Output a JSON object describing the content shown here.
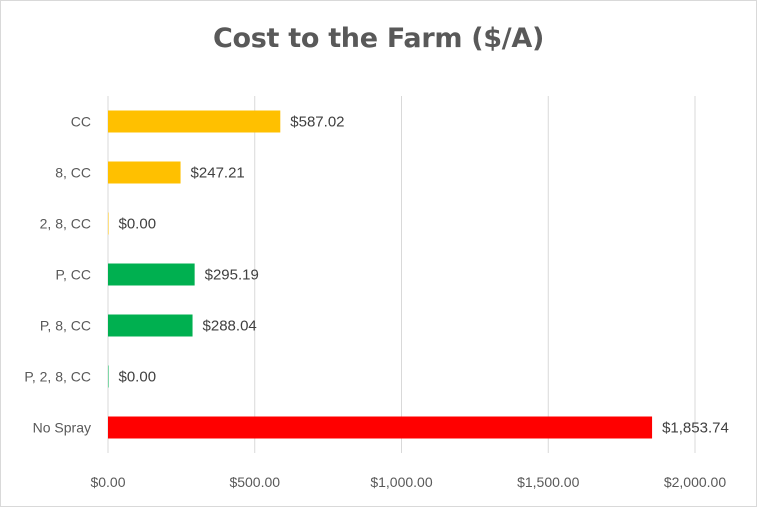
{
  "chart_data": {
    "type": "bar",
    "orientation": "horizontal",
    "title": "Cost to the Farm ($/A)",
    "xlabel": "",
    "ylabel": "",
    "xlim": [
      0,
      2000
    ],
    "x_ticks": [
      0,
      500,
      1000,
      1500,
      2000
    ],
    "x_tick_labels": [
      "$0.00",
      "$500.00",
      "$1,000.00",
      "$1,500.00",
      "$2,000.00"
    ],
    "gridlines": "vertical",
    "legend": "none",
    "categories": [
      "CC",
      "8, CC",
      "2, 8, CC",
      "P, CC",
      "P, 8, CC",
      "P, 2, 8, CC",
      "No Spray"
    ],
    "values": [
      587.02,
      247.21,
      0.0,
      295.19,
      288.04,
      0.0,
      1853.74
    ],
    "data_labels": [
      "$587.02",
      "$247.21",
      "$0.00",
      "$295.19",
      "$288.04",
      "$0.00",
      "$1,853.74"
    ],
    "colors": [
      "#ffc000",
      "#ffc000",
      "#ffc000",
      "#00b050",
      "#00b050",
      "#00b050",
      "#ff0000"
    ],
    "gridline_color": "#d9d9d9"
  }
}
